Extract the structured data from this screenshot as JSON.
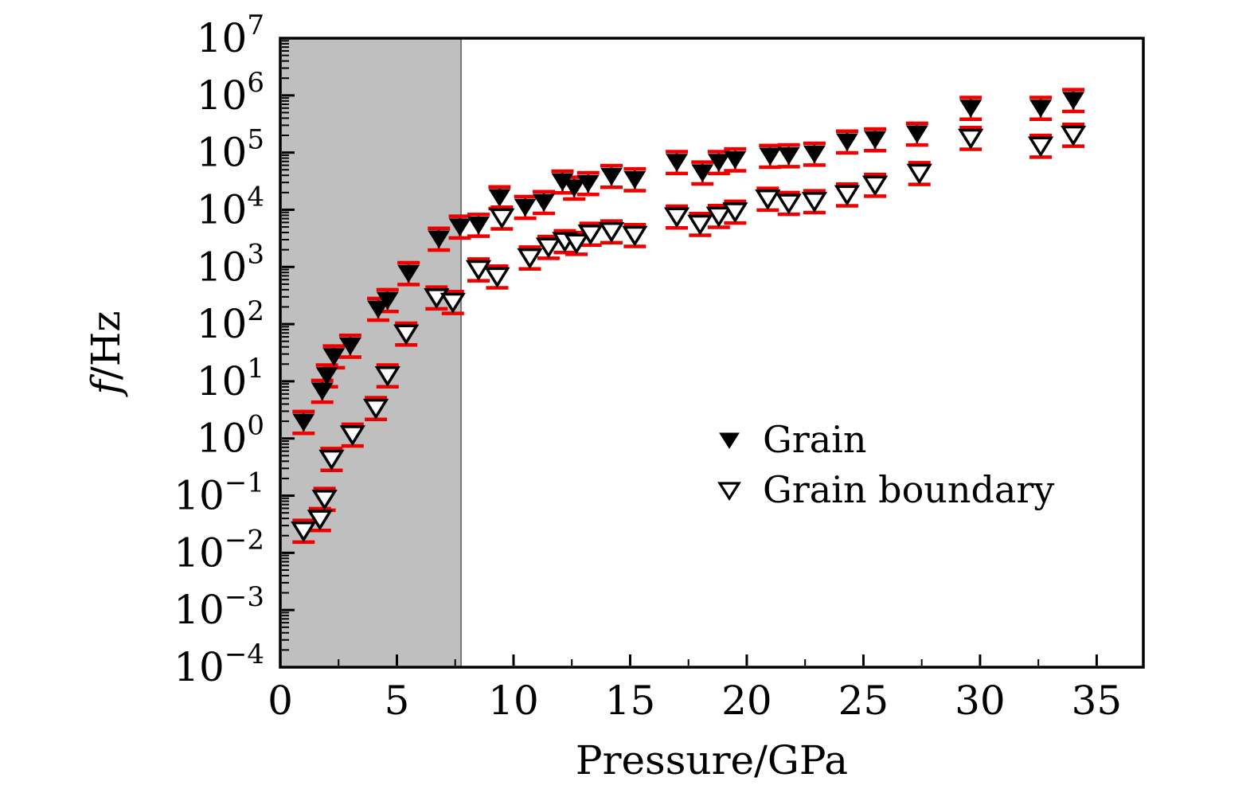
{
  "figure": {
    "background": "#ffffff",
    "labels": {
      "x_axis": "Pressure/GPa",
      "y_axis": "f/Hz",
      "y_axis_italic_part": "f",
      "y_axis_rest_part": "/Hz"
    },
    "legend": {
      "items": [
        {
          "marker": "filled-triangle-down-icon",
          "label": "Grain"
        },
        {
          "marker": "open-triangle-down-icon",
          "label": "Grain boundary"
        }
      ]
    },
    "colors": {
      "marker": "#000000",
      "error_bar": "#ee0000",
      "shaded_band": "#bfbfbf",
      "shaded_band_edge": "#777777",
      "frame": "#000000"
    }
  },
  "chart_data": {
    "type": "scatter",
    "title": "",
    "xlabel": "Pressure/GPa",
    "ylabel": "f/Hz",
    "x_axis": {
      "min": 0,
      "max": 37,
      "major_ticks": [
        0,
        5,
        10,
        15,
        20,
        25,
        30,
        35
      ],
      "minor_tick_step": 2.5
    },
    "y_axis": {
      "scale": "log",
      "min_exponent": -4,
      "max_exponent": 7,
      "tick_exponents": [
        7,
        6,
        5,
        4,
        3,
        2,
        1,
        0,
        -1,
        -2,
        -3,
        -4
      ],
      "tick_base": "10"
    },
    "shaded_region": {
      "x_start": 0,
      "x_end": 7.75
    },
    "error_decades": {
      "up": 0.17,
      "down": 0.21
    },
    "legend_position": "center-right",
    "grid": false,
    "series": [
      {
        "name": "Grain",
        "marker": "filled-triangle-down",
        "points": [
          [
            1.0,
            2
          ],
          [
            1.8,
            7
          ],
          [
            2.0,
            13
          ],
          [
            2.3,
            28
          ],
          [
            3.0,
            43
          ],
          [
            4.2,
            190
          ],
          [
            4.6,
            270
          ],
          [
            5.5,
            800
          ],
          [
            6.8,
            3200
          ],
          [
            7.7,
            5200
          ],
          [
            8.5,
            5600
          ],
          [
            9.4,
            17000
          ],
          [
            10.5,
            11500
          ],
          [
            11.3,
            14000
          ],
          [
            12.1,
            32000
          ],
          [
            12.6,
            25000
          ],
          [
            13.2,
            30000
          ],
          [
            14.2,
            40000
          ],
          [
            15.2,
            35000
          ],
          [
            17.0,
            70000
          ],
          [
            18.1,
            46000
          ],
          [
            18.8,
            70000
          ],
          [
            19.5,
            78000
          ],
          [
            21.0,
            90000
          ],
          [
            21.8,
            92000
          ],
          [
            22.9,
            98000
          ],
          [
            24.3,
            160000
          ],
          [
            25.5,
            175000
          ],
          [
            27.3,
            220000
          ],
          [
            29.6,
            620000
          ],
          [
            32.6,
            620000
          ],
          [
            34.0,
            850000
          ]
        ]
      },
      {
        "name": "Grain boundary",
        "marker": "open-triangle-down",
        "points": [
          [
            1.0,
            0.025
          ],
          [
            1.7,
            0.04
          ],
          [
            1.9,
            0.09
          ],
          [
            2.2,
            0.45
          ],
          [
            3.1,
            1.2
          ],
          [
            4.1,
            3.5
          ],
          [
            4.6,
            13
          ],
          [
            5.4,
            70
          ],
          [
            6.7,
            300
          ],
          [
            7.4,
            250
          ],
          [
            8.5,
            930
          ],
          [
            9.3,
            700
          ],
          [
            9.5,
            7500
          ],
          [
            10.7,
            1500
          ],
          [
            11.5,
            2300
          ],
          [
            12.2,
            2900
          ],
          [
            12.7,
            2700
          ],
          [
            13.3,
            3900
          ],
          [
            14.2,
            4300
          ],
          [
            15.2,
            3700
          ],
          [
            17.0,
            7800
          ],
          [
            18.0,
            5800
          ],
          [
            18.8,
            8000
          ],
          [
            19.5,
            9500
          ],
          [
            20.9,
            16000
          ],
          [
            21.8,
            13500
          ],
          [
            22.9,
            14500
          ],
          [
            24.3,
            19000
          ],
          [
            25.5,
            28000
          ],
          [
            27.4,
            45000
          ],
          [
            29.6,
            185000
          ],
          [
            32.6,
            135000
          ],
          [
            34.0,
            210000
          ]
        ]
      }
    ]
  }
}
